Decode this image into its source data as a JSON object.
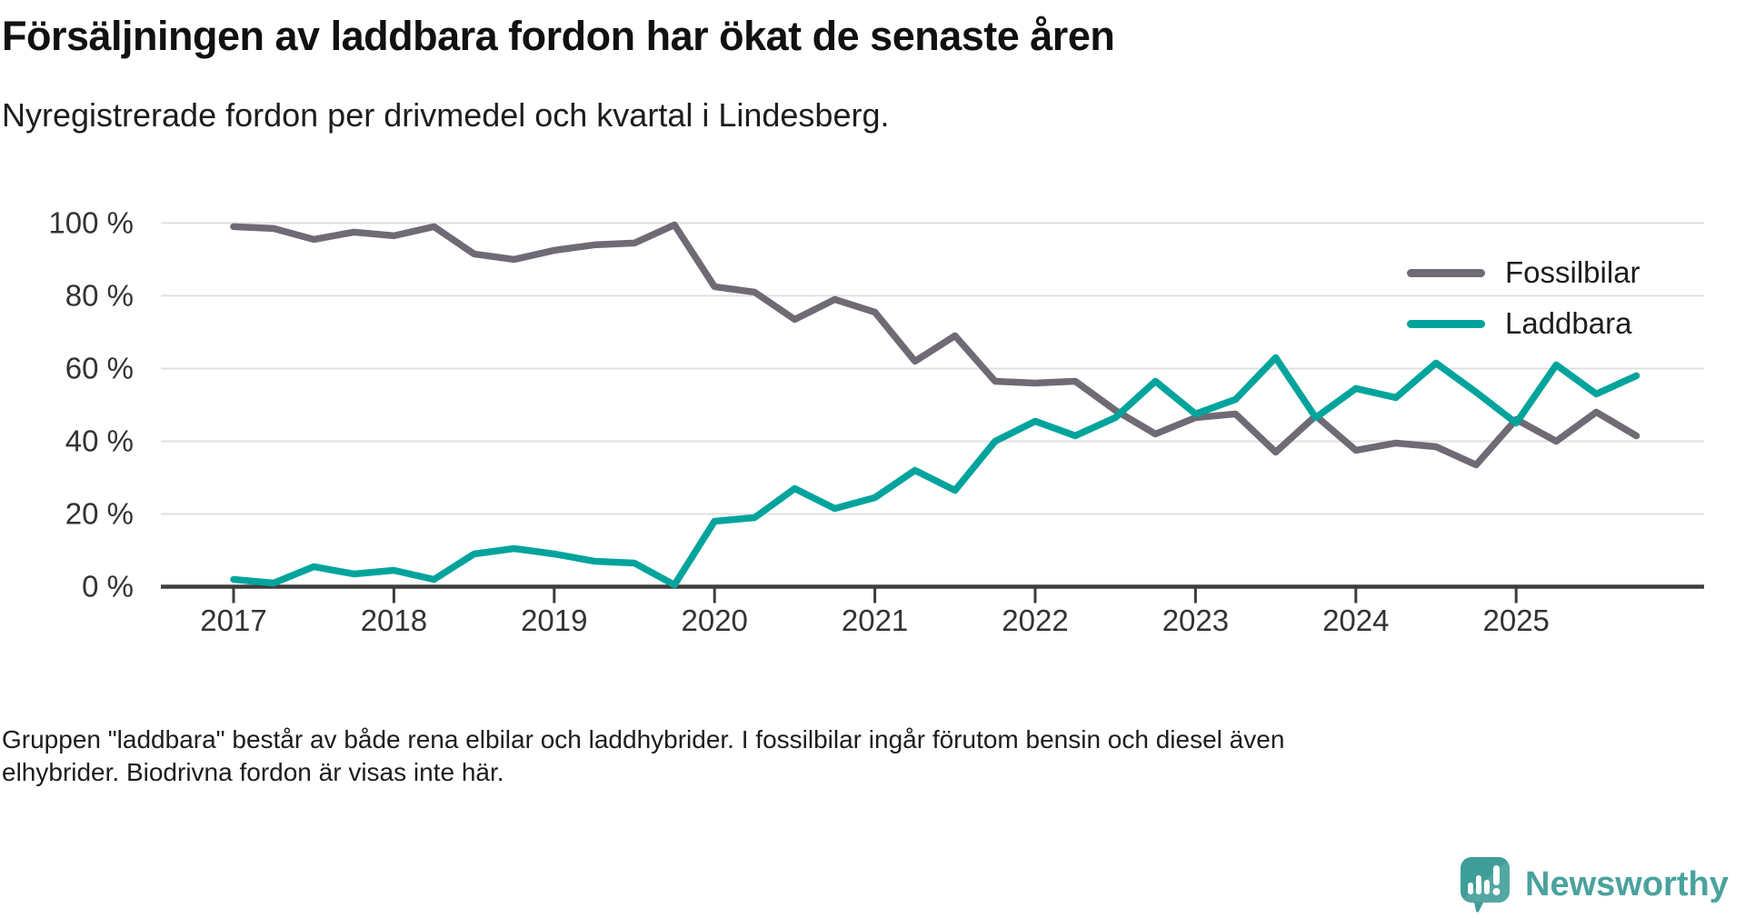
{
  "header": {
    "title": "Försäljningen av laddbara fordon har ökat de senaste åren",
    "subtitle": "Nyregistrerade fordon per drivmedel och kvartal i Lindesberg."
  },
  "chart_data": {
    "type": "line",
    "x": [
      "2017-K1",
      "2017-K2",
      "2017-K3",
      "2017-K4",
      "2018-K1",
      "2018-K2",
      "2018-K3",
      "2018-K4",
      "2019-K1",
      "2019-K2",
      "2019-K3",
      "2019-K4",
      "2020-K1",
      "2020-K2",
      "2020-K3",
      "2020-K4",
      "2021-K1",
      "2021-K2",
      "2021-K3",
      "2021-K4",
      "2022-K1",
      "2022-K2",
      "2022-K3",
      "2022-K4",
      "2023-K1",
      "2023-K2",
      "2023-K3",
      "2023-K4",
      "2024-K1",
      "2024-K2",
      "2024-K3",
      "2024-K4",
      "2025-K1",
      "2025-K2",
      "2025-K3",
      "2025-K4"
    ],
    "series": [
      {
        "name": "Fossilbilar",
        "color": "#6f6a74",
        "values": [
          99,
          98.5,
          95.5,
          97.5,
          96.5,
          99,
          91.5,
          90,
          92.5,
          94,
          94.5,
          99.5,
          82.5,
          81,
          73.5,
          79,
          75.5,
          62,
          69,
          56.5,
          56,
          56.5,
          48.5,
          42,
          46.5,
          47.5,
          37,
          47,
          37.5,
          39.5,
          38.5,
          33.5,
          46,
          40,
          48,
          41.5
        ]
      },
      {
        "name": "Laddbara",
        "color": "#00a49c",
        "values": [
          2,
          1,
          5.5,
          3.5,
          4.5,
          2,
          9,
          10.5,
          9,
          7,
          6.5,
          0.5,
          18,
          19,
          27,
          21.5,
          24.5,
          32,
          26.5,
          40,
          45.5,
          41.5,
          46.5,
          56.5,
          47.5,
          51.5,
          63,
          46.5,
          54.5,
          52,
          61.5,
          53.5,
          45,
          61,
          53,
          58
        ]
      }
    ],
    "x_ticks": [
      {
        "label": "2017"
      },
      {
        "label": "2018"
      },
      {
        "label": "2019"
      },
      {
        "label": "2020"
      },
      {
        "label": "2021"
      },
      {
        "label": "2022"
      },
      {
        "label": "2023"
      },
      {
        "label": "2024"
      },
      {
        "label": "2025"
      }
    ],
    "y_ticks": [
      {
        "value": 0,
        "label": "0 %"
      },
      {
        "value": 20,
        "label": "20 %"
      },
      {
        "value": 40,
        "label": "40 %"
      },
      {
        "value": 60,
        "label": "60 %"
      },
      {
        "value": 80,
        "label": "80 %"
      },
      {
        "value": 100,
        "label": "100 %"
      }
    ],
    "ylim": [
      0,
      100
    ],
    "grid": "horizontal",
    "legend_position": "top-right",
    "title": "Försäljningen av laddbara fordon har ökat de senaste åren",
    "xlabel": "",
    "ylabel": ""
  },
  "legend": {
    "fossil_label": "Fossilbilar",
    "laddbara_label": "Laddbara"
  },
  "footer": {
    "lines": [
      "Gruppen \"laddbara\" består av både rena elbilar och laddhybrider. I fossilbilar ingår förutom bensin och diesel även",
      "elhybrider. Biodrivna fordon är visas inte här."
    ]
  },
  "branding": {
    "name": "Newsworthy",
    "logo_color": "#4aa29e",
    "icon_color": "#3f9d99"
  },
  "colors": {
    "gridline": "#e0e0e0",
    "axis": "#3d3d3d",
    "tick_label": "#333333"
  }
}
